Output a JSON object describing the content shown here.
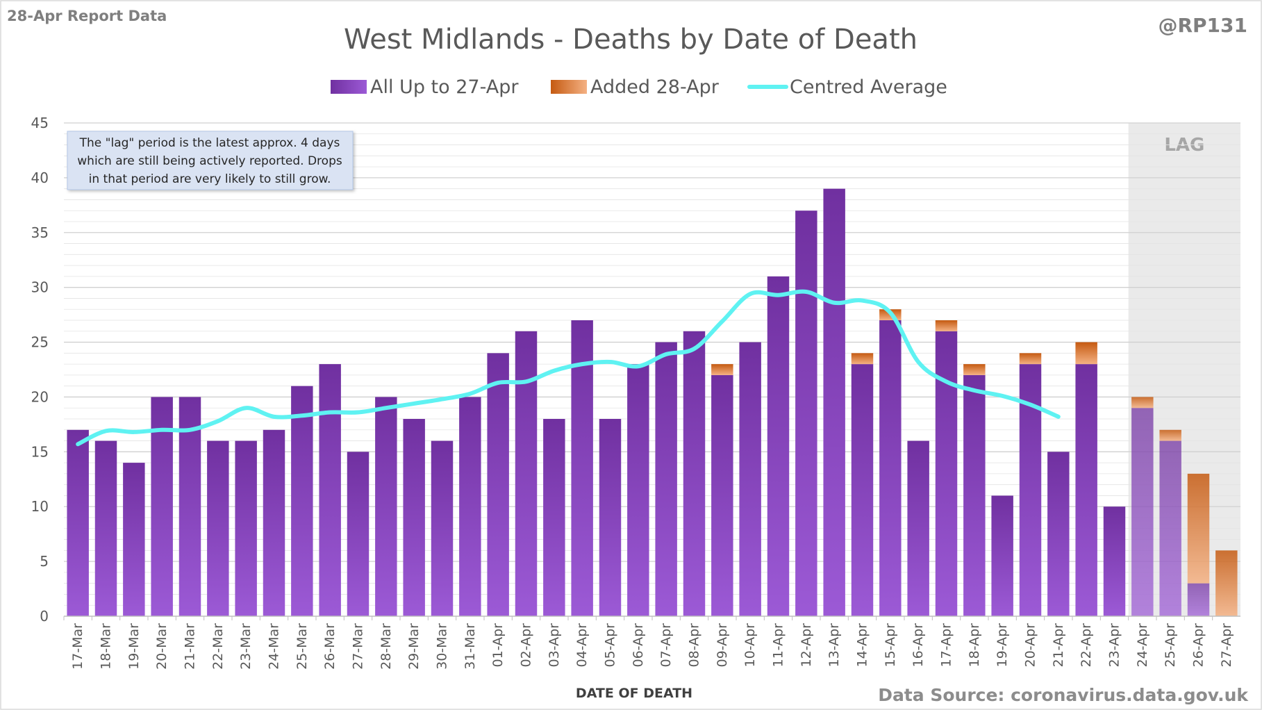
{
  "header": {
    "report_label": "28-Apr Report Data",
    "handle": "@RP131"
  },
  "footer": {
    "source": "Data Source: coronavirus.data.gov.uk"
  },
  "note": {
    "lines": [
      "The \"lag\" period is the latest approx. 4 days",
      "which are still being actively reported.  Drops",
      "in that period are very likely to still grow."
    ]
  },
  "colors": {
    "bar_top": "#7030a0",
    "bar_bottom": "#9c5ad6",
    "added_top": "#c55a11",
    "added_bottom": "#f4b183",
    "average_line": "#5ff2f2",
    "lag_shade": "#d9d9d9",
    "grid": "#e3e3e3"
  },
  "chart_data": {
    "type": "bar",
    "stacked": true,
    "title": "West Midlands - Deaths by Date of Death",
    "xlabel": "DATE OF DEATH",
    "ylabel": "",
    "ylim": [
      0,
      45
    ],
    "yticks": [
      0,
      5,
      10,
      15,
      20,
      25,
      30,
      35,
      40,
      45
    ],
    "grid": true,
    "legend_position": "top",
    "categories": [
      "17-Mar",
      "18-Mar",
      "19-Mar",
      "20-Mar",
      "21-Mar",
      "22-Mar",
      "23-Mar",
      "24-Mar",
      "25-Mar",
      "26-Mar",
      "27-Mar",
      "28-Mar",
      "29-Mar",
      "30-Mar",
      "31-Mar",
      "01-Apr",
      "02-Apr",
      "03-Apr",
      "04-Apr",
      "05-Apr",
      "06-Apr",
      "07-Apr",
      "08-Apr",
      "09-Apr",
      "10-Apr",
      "11-Apr",
      "12-Apr",
      "13-Apr",
      "14-Apr",
      "15-Apr",
      "16-Apr",
      "17-Apr",
      "18-Apr",
      "19-Apr",
      "20-Apr",
      "21-Apr",
      "22-Apr",
      "23-Apr",
      "24-Apr",
      "25-Apr",
      "26-Apr",
      "27-Apr"
    ],
    "series": [
      {
        "name": "All Up to 27-Apr",
        "kind": "bar",
        "values": [
          17,
          16,
          14,
          20,
          20,
          16,
          16,
          17,
          21,
          23,
          15,
          20,
          18,
          16,
          20,
          24,
          26,
          18,
          27,
          18,
          23,
          25,
          26,
          22,
          25,
          31,
          37,
          39,
          23,
          27,
          16,
          26,
          22,
          11,
          23,
          15,
          23,
          10,
          19,
          16,
          3,
          0
        ]
      },
      {
        "name": "Added 28-Apr",
        "kind": "bar",
        "values": [
          0,
          0,
          0,
          0,
          0,
          0,
          0,
          0,
          0,
          0,
          0,
          0,
          0,
          0,
          0,
          0,
          0,
          0,
          0,
          0,
          0,
          0,
          0,
          1,
          0,
          0,
          0,
          0,
          1,
          1,
          0,
          1,
          1,
          0,
          1,
          0,
          2,
          0,
          1,
          1,
          10,
          6
        ]
      },
      {
        "name": "Centred Average",
        "kind": "line",
        "values": [
          15.7,
          16.9,
          16.8,
          17.0,
          17.0,
          17.8,
          19.0,
          18.2,
          18.3,
          18.6,
          18.6,
          19.0,
          19.4,
          19.8,
          20.3,
          21.3,
          21.4,
          22.4,
          23.0,
          23.2,
          22.8,
          23.9,
          24.4,
          26.9,
          29.4,
          29.3,
          29.6,
          28.6,
          28.8,
          27.7,
          23.2,
          21.4,
          20.6,
          20.1,
          19.3,
          18.2,
          null,
          null,
          null,
          null,
          null,
          null
        ]
      }
    ],
    "lag": {
      "label": "LAG",
      "categories": [
        "24-Apr",
        "25-Apr",
        "26-Apr",
        "27-Apr"
      ]
    }
  }
}
